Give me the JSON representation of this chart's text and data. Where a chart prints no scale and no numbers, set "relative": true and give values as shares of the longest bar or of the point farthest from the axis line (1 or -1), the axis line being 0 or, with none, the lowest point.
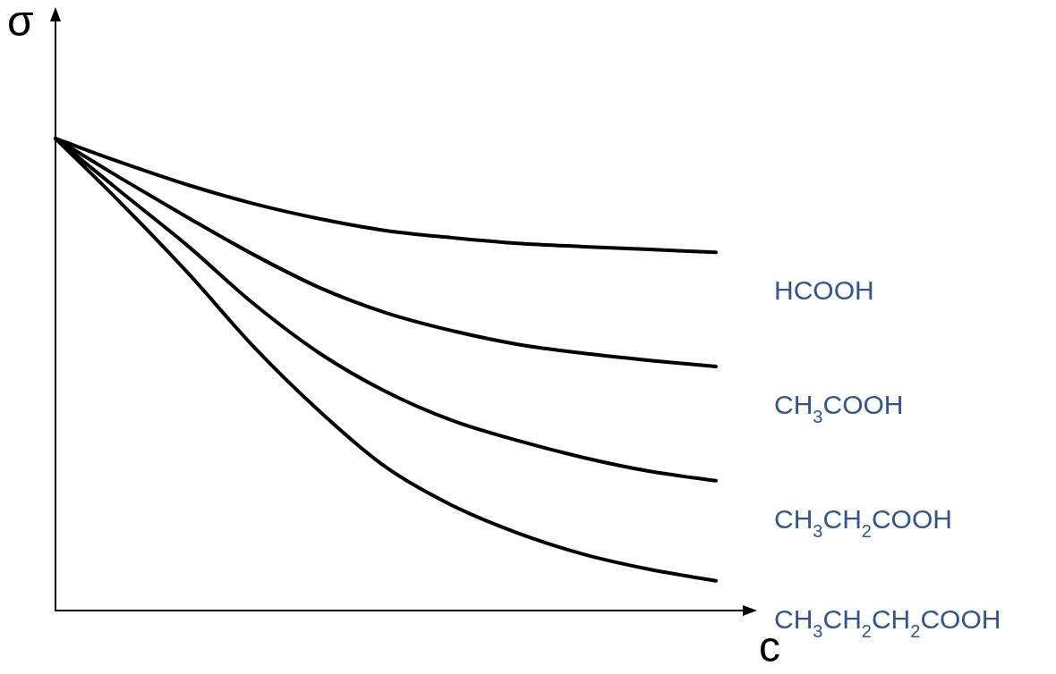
{
  "chart_data": {
    "type": "line",
    "relative": true,
    "xlabel": "c",
    "ylabel": "σ",
    "categories": [
      null,
      null,
      null,
      null,
      null,
      null,
      null,
      null,
      null,
      null,
      null
    ],
    "series": [
      {
        "name": "HCOOH",
        "color": "#000000",
        "values": [
          1,
          0.949,
          0.902,
          0.862,
          0.83,
          0.805,
          0.79,
          0.778,
          0.771,
          0.765,
          0.759
        ]
      },
      {
        "name": "CH$_{3}$COOH",
        "color": "#000000",
        "values": [
          1,
          0.915,
          0.833,
          0.754,
          0.684,
          0.631,
          0.593,
          0.564,
          0.545,
          0.53,
          0.517
        ]
      },
      {
        "name": "CH$_{3}$CH$_{2}$COOH",
        "color": "#000000",
        "values": [
          1,
          0.886,
          0.773,
          0.65,
          0.545,
          0.464,
          0.403,
          0.36,
          0.324,
          0.295,
          0.275
        ]
      },
      {
        "name": "CH$_{3}$CH$_{2}$CH$_{2}$COOH",
        "color": "#000000",
        "values": [
          1,
          0.862,
          0.716,
          0.559,
          0.422,
          0.304,
          0.223,
          0.164,
          0.119,
          0.087,
          0.063
        ]
      }
    ]
  }
}
